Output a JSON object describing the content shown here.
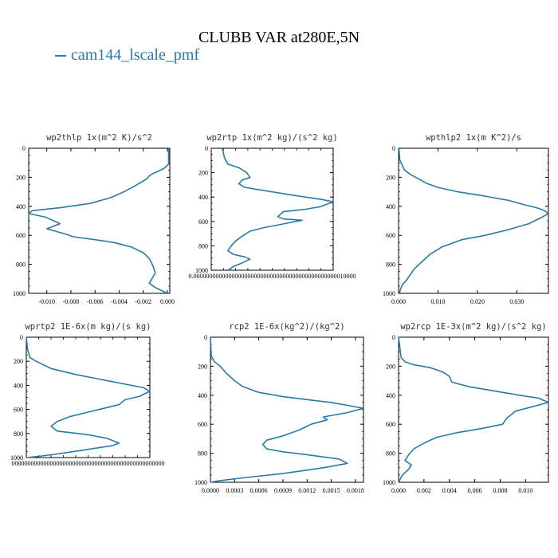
{
  "title": "CLUBB VAR at280E,5N",
  "legend": {
    "dash": "–",
    "label": "cam144_lscale_pmf",
    "color": "#2a7aa8"
  },
  "chart_data": [
    {
      "type": "line",
      "title": "wp2thlp   1x(m^2 K)/s^2",
      "ylim": [
        1000,
        0
      ],
      "yticks": [
        "0",
        "200",
        "400",
        "600",
        "800",
        "1000"
      ],
      "xlim": [
        -0.0115,
        0.0002
      ],
      "xticks": [
        -0.01,
        -0.008,
        -0.006,
        -0.004,
        -0.002,
        0.0
      ],
      "xticklabels": [
        "-0.010",
        "-0.008",
        "-0.006",
        "-0.004",
        "-0.002",
        "0.000"
      ],
      "series": [
        {
          "x": [
            0.0001,
            0.0001,
            -0.0003,
            -0.0008,
            -0.0012,
            -0.0015,
            -0.0017,
            -0.0021,
            -0.0028,
            -0.0036,
            -0.0047,
            -0.0064,
            -0.0089,
            -0.0112,
            -0.0115,
            -0.0101,
            -0.0089,
            -0.01,
            -0.0085,
            -0.0078,
            -0.006,
            -0.0044,
            -0.003,
            -0.002,
            -0.0015,
            -0.0012,
            -0.001,
            -0.0015,
            -0.001,
            0.0
          ],
          "y": [
            0,
            110,
            140,
            160,
            175,
            190,
            210,
            230,
            265,
            300,
            340,
            380,
            410,
            430,
            450,
            475,
            520,
            555,
            590,
            610,
            630,
            650,
            680,
            720,
            760,
            810,
            860,
            930,
            960,
            1000
          ]
        }
      ]
    },
    {
      "type": "line",
      "title": "wp2rtp   1x(m^2 kg)/(s^2 kg)",
      "ylim": [
        1000,
        0
      ],
      "yticks": [
        "0",
        "200",
        "400",
        "600",
        "800",
        "1000"
      ],
      "xlim": [
        -0.1,
        1.0
      ],
      "xticks": [],
      "xticklabels": [],
      "xaxis_text": "0.000000000000000000000000000000000000000000000010000",
      "series": [
        {
          "x": [
            0.0,
            0.02,
            0.05,
            0.15,
            0.22,
            0.25,
            0.18,
            0.15,
            0.2,
            0.4,
            0.6,
            0.75,
            0.9,
            1.0,
            0.88,
            0.75,
            0.55,
            0.5,
            0.55,
            0.72,
            0.55,
            0.38,
            0.25,
            0.18,
            0.12,
            0.08,
            0.05,
            0.1,
            0.2,
            0.25,
            0.18,
            0.1,
            0.05
          ],
          "y": [
            0,
            80,
            130,
            160,
            200,
            240,
            260,
            290,
            320,
            350,
            380,
            400,
            420,
            440,
            480,
            500,
            520,
            560,
            580,
            590,
            620,
            650,
            680,
            720,
            760,
            800,
            840,
            870,
            890,
            910,
            940,
            970,
            1000
          ]
        }
      ]
    },
    {
      "type": "line",
      "title": "wpthlp2   1x(m K^2)/s",
      "ylim": [
        1000,
        0
      ],
      "yticks": [
        "0",
        "200",
        "400",
        "600",
        "800",
        "1000"
      ],
      "xlim": [
        0.0,
        0.038
      ],
      "xticks": [
        0.0,
        0.01,
        0.02,
        0.03
      ],
      "xticklabels": [
        "0.000",
        "0.010",
        "0.020",
        "0.030"
      ],
      "series": [
        {
          "x": [
            0.0001,
            0.0003,
            0.001,
            0.0015,
            0.003,
            0.005,
            0.007,
            0.01,
            0.015,
            0.022,
            0.028,
            0.032,
            0.035,
            0.037,
            0.038,
            0.036,
            0.033,
            0.028,
            0.022,
            0.016,
            0.011,
            0.008,
            0.006,
            0.004,
            0.003,
            0.002,
            0.001,
            0.0005,
            0.0002
          ],
          "y": [
            0,
            80,
            120,
            150,
            180,
            210,
            240,
            270,
            300,
            330,
            360,
            390,
            410,
            430,
            450,
            480,
            520,
            560,
            600,
            630,
            680,
            730,
            780,
            830,
            870,
            910,
            940,
            970,
            1000
          ]
        }
      ]
    },
    {
      "type": "line",
      "title": "wprtp2   1E-6x(m kg)/(s kg)",
      "ylim": [
        1000,
        0
      ],
      "yticks": [
        "0",
        "200",
        "400",
        "600",
        "800",
        "1000"
      ],
      "xlim": [
        0.0,
        1.0
      ],
      "xticks": [],
      "xticklabels": [],
      "xaxis_text": "000000000000000000000000000000000000000000000000",
      "series": [
        {
          "x": [
            0.0,
            0.01,
            0.03,
            0.08,
            0.2,
            0.4,
            0.6,
            0.8,
            0.95,
            1.0,
            0.92,
            0.8,
            0.75,
            0.55,
            0.35,
            0.25,
            0.2,
            0.25,
            0.5,
            0.65,
            0.75,
            0.7,
            0.45,
            0.25,
            0.1,
            0.0
          ],
          "y": [
            0,
            100,
            170,
            200,
            260,
            310,
            350,
            390,
            420,
            450,
            490,
            520,
            560,
            610,
            660,
            700,
            740,
            780,
            810,
            840,
            880,
            900,
            940,
            970,
            990,
            1000
          ]
        }
      ]
    },
    {
      "type": "line",
      "title": "rcp2   1E-6x(kg^2)/(kg^2)",
      "ylim": [
        1000,
        0
      ],
      "yticks": [
        "0",
        "200",
        "400",
        "600",
        "800",
        "1000"
      ],
      "xlim": [
        0.0,
        0.0019
      ],
      "xticks": [
        0.0,
        0.0003,
        0.0006,
        0.0009,
        0.0012,
        0.0015,
        0.0018
      ],
      "xticklabels": [
        "0.0000",
        "0.0003",
        "0.0006",
        "0.0009",
        "0.0012",
        "0.0015",
        "0.0018"
      ],
      "series": [
        {
          "x": [
            0.0,
            1e-05,
            5e-05,
            0.00012,
            0.0002,
            0.0003,
            0.0004,
            0.0006,
            0.0009,
            0.0012,
            0.0015,
            0.0017,
            0.0019,
            0.0017,
            0.0014,
            0.00145,
            0.00125,
            0.0011,
            0.0009,
            0.0007,
            0.00065,
            0.0007,
            0.0009,
            0.0012,
            0.0016,
            0.0017,
            0.0014,
            0.0009,
            0.0004,
            0.0001,
            0.0
          ],
          "y": [
            0,
            130,
            170,
            200,
            250,
            300,
            340,
            380,
            410,
            430,
            450,
            470,
            490,
            520,
            550,
            570,
            600,
            640,
            680,
            710,
            740,
            770,
            790,
            810,
            840,
            870,
            900,
            940,
            970,
            990,
            1000
          ]
        }
      ]
    },
    {
      "type": "line",
      "title": "wp2rcp   1E-3x(m^2 kg)/(s^2 kg)",
      "ylim": [
        1000,
        0
      ],
      "yticks": [
        "0",
        "200",
        "400",
        "600",
        "800",
        "1000"
      ],
      "xlim": [
        0.0,
        0.0118
      ],
      "xticks": [
        0.0,
        0.002,
        0.004,
        0.006,
        0.008,
        0.01
      ],
      "xticklabels": [
        "0.000",
        "0.002",
        "0.004",
        "0.006",
        "0.008",
        "0.010"
      ],
      "series": [
        {
          "x": [
            0.0,
            0.0001,
            0.0002,
            0.0005,
            0.0012,
            0.0025,
            0.0035,
            0.004,
            0.0042,
            0.0055,
            0.0075,
            0.0095,
            0.011,
            0.0118,
            0.0105,
            0.0092,
            0.0085,
            0.0082,
            0.0065,
            0.0045,
            0.003,
            0.002,
            0.0012,
            0.0008,
            0.0005,
            0.001,
            0.0008,
            0.0003,
            0.0
          ],
          "y": [
            0,
            70,
            140,
            170,
            190,
            210,
            240,
            270,
            310,
            340,
            370,
            400,
            420,
            450,
            480,
            510,
            560,
            600,
            630,
            660,
            690,
            730,
            770,
            810,
            850,
            880,
            910,
            950,
            1000
          ]
        }
      ]
    }
  ]
}
